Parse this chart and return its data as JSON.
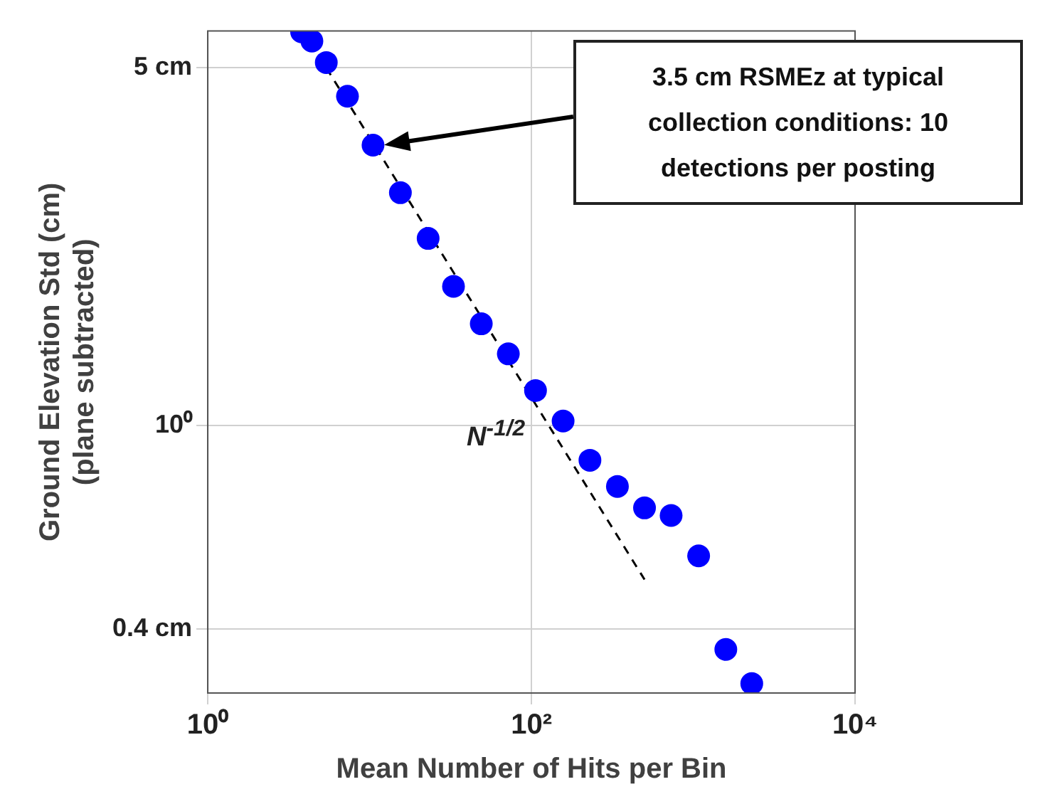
{
  "chart_data": {
    "type": "scatter",
    "xlabel": "Mean Number of Hits per Bin",
    "ylabel": "Ground Elevation Std (cm)\n(plane subtracted)",
    "log": "xy",
    "grid": true,
    "legend": false,
    "xlim": [
      1,
      10000
    ],
    "xticks": [
      {
        "value": 1,
        "label": "10⁰"
      },
      {
        "value": 100,
        "label": "10²"
      },
      {
        "value": 10000,
        "label": "10⁴"
      }
    ],
    "ylim": [
      0.3,
      5.9
    ],
    "yticks": [
      {
        "value": 0.4,
        "label": "0.4 cm"
      },
      {
        "value": 1,
        "label": "10⁰"
      },
      {
        "value": 5,
        "label": "5 cm"
      }
    ],
    "series": [
      {
        "type": "scatter",
        "color": "#0000ff",
        "marker": "circle",
        "x": [
          3.8,
          4.4,
          5.4,
          7.3,
          10.5,
          15.5,
          23,
          33,
          49,
          72,
          106,
          157,
          230,
          340,
          500,
          730,
          1080,
          1590,
          2300
        ],
        "values": [
          5.88,
          5.64,
          5.12,
          4.4,
          3.53,
          2.85,
          2.32,
          1.87,
          1.58,
          1.38,
          1.17,
          1.02,
          0.855,
          0.76,
          0.69,
          0.667,
          0.556,
          0.365,
          0.313
        ]
      },
      {
        "type": "line",
        "color": "#000000",
        "marker": "none",
        "line_style": "dashed",
        "x": [
          5.4,
          500
        ],
        "values": [
          5.0,
          0.5
        ]
      }
    ],
    "annotations": [
      "N$^{-1/2}$",
      "3.5 cm RSMEz at typical collection conditions: 10 detections per posting"
    ]
  }
}
